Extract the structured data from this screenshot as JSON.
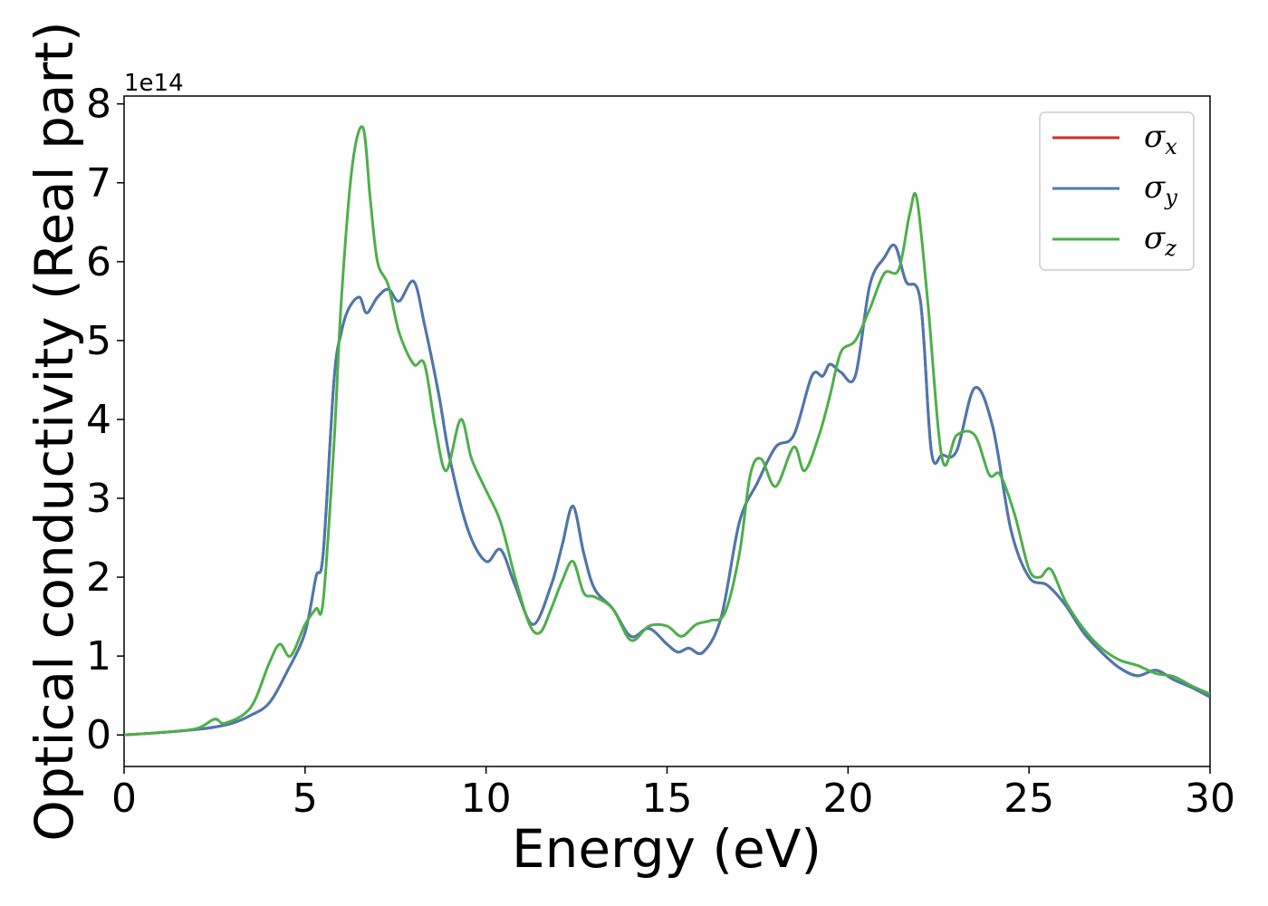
{
  "chart_data": {
    "type": "line",
    "xlabel": "Energy (eV)",
    "ylabel": "Optical conductivity (Real part)",
    "y_offset_label": "1e14",
    "xlim": [
      0,
      30
    ],
    "ylim": [
      -0.4,
      8.1
    ],
    "xticks": [
      0,
      5,
      10,
      15,
      20,
      25,
      30
    ],
    "yticks": [
      0,
      1,
      2,
      3,
      4,
      5,
      6,
      7,
      8
    ],
    "grid": false,
    "legend_position": "top-right",
    "series": [
      {
        "name": "σx",
        "symbol": "σ",
        "subscript": "x",
        "color": "#d62728",
        "x": [
          0,
          1,
          2,
          2.5,
          3,
          3.5,
          4,
          4.5,
          5,
          5.3,
          5.5,
          5.8,
          6,
          6.2,
          6.5,
          6.7,
          7,
          7.3,
          7.6,
          8,
          8.3,
          8.7,
          9,
          9.5,
          10,
          10.4,
          10.8,
          11.3,
          11.8,
          12.1,
          12.4,
          12.7,
          13,
          13.5,
          14,
          14.5,
          15,
          15.3,
          15.6,
          16,
          16.5,
          17,
          17.5,
          18,
          18.5,
          19,
          19.3,
          19.5,
          19.8,
          20.2,
          20.6,
          21,
          21.3,
          21.6,
          22,
          22.3,
          22.6,
          23,
          23.5,
          24,
          24.5,
          25,
          25.5,
          26,
          26.5,
          27,
          27.5,
          28,
          28.5,
          29,
          29.5,
          30
        ],
        "y": [
          0,
          0.03,
          0.07,
          0.1,
          0.15,
          0.25,
          0.4,
          0.8,
          1.3,
          2.0,
          2.3,
          4.5,
          5.1,
          5.4,
          5.55,
          5.35,
          5.55,
          5.65,
          5.5,
          5.75,
          5.2,
          4.3,
          3.5,
          2.6,
          2.2,
          2.35,
          1.9,
          1.4,
          1.9,
          2.4,
          2.9,
          2.3,
          1.85,
          1.6,
          1.25,
          1.35,
          1.15,
          1.05,
          1.1,
          1.05,
          1.5,
          2.7,
          3.2,
          3.65,
          3.8,
          4.55,
          4.55,
          4.7,
          4.6,
          4.55,
          5.7,
          6.05,
          6.2,
          5.75,
          5.5,
          3.6,
          3.55,
          3.6,
          4.4,
          3.9,
          2.6,
          2.0,
          1.9,
          1.65,
          1.3,
          1.05,
          0.85,
          0.75,
          0.82,
          0.7,
          0.6,
          0.48
        ]
      },
      {
        "name": "σy",
        "symbol": "σ",
        "subscript": "y",
        "color": "#4a78b0",
        "x": [
          0,
          1,
          2,
          2.5,
          3,
          3.5,
          4,
          4.5,
          5,
          5.3,
          5.5,
          5.8,
          6,
          6.2,
          6.5,
          6.7,
          7,
          7.3,
          7.6,
          8,
          8.3,
          8.7,
          9,
          9.5,
          10,
          10.4,
          10.8,
          11.3,
          11.8,
          12.1,
          12.4,
          12.7,
          13,
          13.5,
          14,
          14.5,
          15,
          15.3,
          15.6,
          16,
          16.5,
          17,
          17.5,
          18,
          18.5,
          19,
          19.3,
          19.5,
          19.8,
          20.2,
          20.6,
          21,
          21.3,
          21.6,
          22,
          22.3,
          22.6,
          23,
          23.5,
          24,
          24.5,
          25,
          25.5,
          26,
          26.5,
          27,
          27.5,
          28,
          28.5,
          29,
          29.5,
          30
        ],
        "y": [
          0,
          0.03,
          0.07,
          0.1,
          0.15,
          0.25,
          0.4,
          0.8,
          1.3,
          2.0,
          2.3,
          4.5,
          5.1,
          5.4,
          5.55,
          5.35,
          5.55,
          5.65,
          5.5,
          5.75,
          5.2,
          4.3,
          3.5,
          2.6,
          2.2,
          2.35,
          1.9,
          1.4,
          1.9,
          2.4,
          2.9,
          2.3,
          1.85,
          1.6,
          1.25,
          1.35,
          1.15,
          1.05,
          1.1,
          1.05,
          1.5,
          2.7,
          3.2,
          3.65,
          3.8,
          4.55,
          4.55,
          4.7,
          4.6,
          4.55,
          5.7,
          6.05,
          6.2,
          5.75,
          5.5,
          3.6,
          3.55,
          3.6,
          4.4,
          3.9,
          2.6,
          2.0,
          1.9,
          1.65,
          1.3,
          1.05,
          0.85,
          0.75,
          0.82,
          0.7,
          0.6,
          0.48
        ]
      },
      {
        "name": "σz",
        "symbol": "σ",
        "subscript": "z",
        "color": "#4daf4a",
        "x": [
          0,
          1,
          2,
          2.5,
          2.8,
          3.5,
          4,
          4.3,
          4.6,
          5,
          5.3,
          5.5,
          5.8,
          6,
          6.3,
          6.6,
          6.8,
          7,
          7.3,
          7.6,
          8,
          8.3,
          8.6,
          8.9,
          9.3,
          9.6,
          10,
          10.4,
          10.8,
          11.2,
          11.5,
          11.8,
          12.1,
          12.4,
          12.7,
          13,
          13.5,
          14,
          14.5,
          15,
          15.4,
          15.8,
          16.2,
          16.6,
          17,
          17.3,
          17.6,
          18,
          18.5,
          18.8,
          19.2,
          19.5,
          19.8,
          20.2,
          20.6,
          21,
          21.4,
          21.7,
          21.9,
          22.2,
          22.6,
          23,
          23.5,
          23.9,
          24.2,
          24.6,
          25,
          25.3,
          25.6,
          26,
          26.5,
          27,
          27.5,
          28,
          28.5,
          29,
          29.5,
          30
        ],
        "y": [
          0,
          0.03,
          0.08,
          0.2,
          0.15,
          0.35,
          0.9,
          1.15,
          1.0,
          1.4,
          1.6,
          1.7,
          3.7,
          5.5,
          7.2,
          7.7,
          6.8,
          6.0,
          5.7,
          5.1,
          4.7,
          4.7,
          3.9,
          3.35,
          4.0,
          3.5,
          3.1,
          2.7,
          2.0,
          1.4,
          1.3,
          1.6,
          1.95,
          2.2,
          1.8,
          1.75,
          1.6,
          1.2,
          1.38,
          1.38,
          1.25,
          1.4,
          1.45,
          1.55,
          2.3,
          3.3,
          3.5,
          3.15,
          3.65,
          3.35,
          3.8,
          4.3,
          4.85,
          5.0,
          5.4,
          5.85,
          5.9,
          6.6,
          6.8,
          5.5,
          3.5,
          3.8,
          3.8,
          3.3,
          3.3,
          2.8,
          2.1,
          2.0,
          2.1,
          1.7,
          1.35,
          1.1,
          0.95,
          0.88,
          0.78,
          0.74,
          0.62,
          0.52
        ]
      }
    ]
  }
}
